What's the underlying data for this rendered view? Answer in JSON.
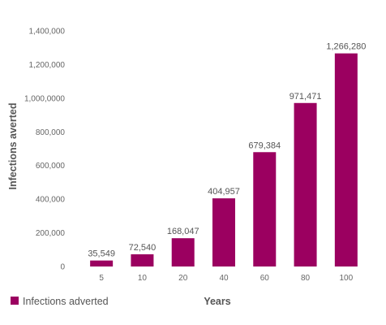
{
  "chart_data": {
    "type": "bar",
    "title": "",
    "xlabel": "Years",
    "ylabel": "Infections averted",
    "categories": [
      "5",
      "10",
      "20",
      "40",
      "60",
      "80",
      "100"
    ],
    "series": [
      {
        "name": "Infections adverted",
        "values": [
          35549,
          72540,
          168047,
          404957,
          679384,
          971471,
          1266280
        ],
        "labels": [
          "35,549",
          "72,540",
          "168,047",
          "404,957",
          "679,384",
          "971,471",
          "1,266,280"
        ]
      }
    ],
    "ylim": [
      0,
      1400000
    ],
    "y_ticks": [
      "0",
      "200,000",
      "400,000",
      "600,000",
      "800,000",
      "1,000,0000",
      "1,200,000",
      "1,400,000"
    ],
    "grid": false,
    "legend_position": "bottom-left",
    "bar_color": "#9b0060"
  }
}
